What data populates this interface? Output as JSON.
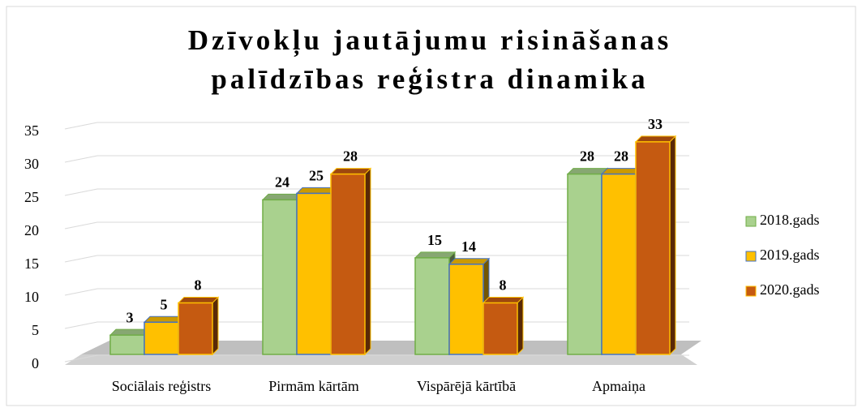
{
  "chart_data": {
    "type": "bar3d",
    "title": "Dzīvokļu jautājumu risināšanas palīdzības reģistra dinamika",
    "categories": [
      "Sociālais reģistrs",
      "Pirmām kārtām",
      "Vispārējā kārtībā",
      "Apmaiņa"
    ],
    "series": [
      {
        "name": "2018.gads",
        "color": "#a9d18e",
        "stroke": "#70ad47",
        "values": [
          3,
          24,
          15,
          28
        ]
      },
      {
        "name": "2019.gads",
        "color": "#ffc000",
        "stroke": "#4472c4",
        "values": [
          5,
          25,
          14,
          28
        ]
      },
      {
        "name": "2020.gads",
        "color": "#c55a11",
        "stroke": "#ffc000",
        "values": [
          8,
          28,
          8,
          33
        ]
      }
    ],
    "ylim": [
      0,
      35
    ],
    "yticks": [
      0,
      5,
      10,
      15,
      20,
      25,
      30,
      35
    ],
    "grid": true,
    "legend": "right"
  }
}
